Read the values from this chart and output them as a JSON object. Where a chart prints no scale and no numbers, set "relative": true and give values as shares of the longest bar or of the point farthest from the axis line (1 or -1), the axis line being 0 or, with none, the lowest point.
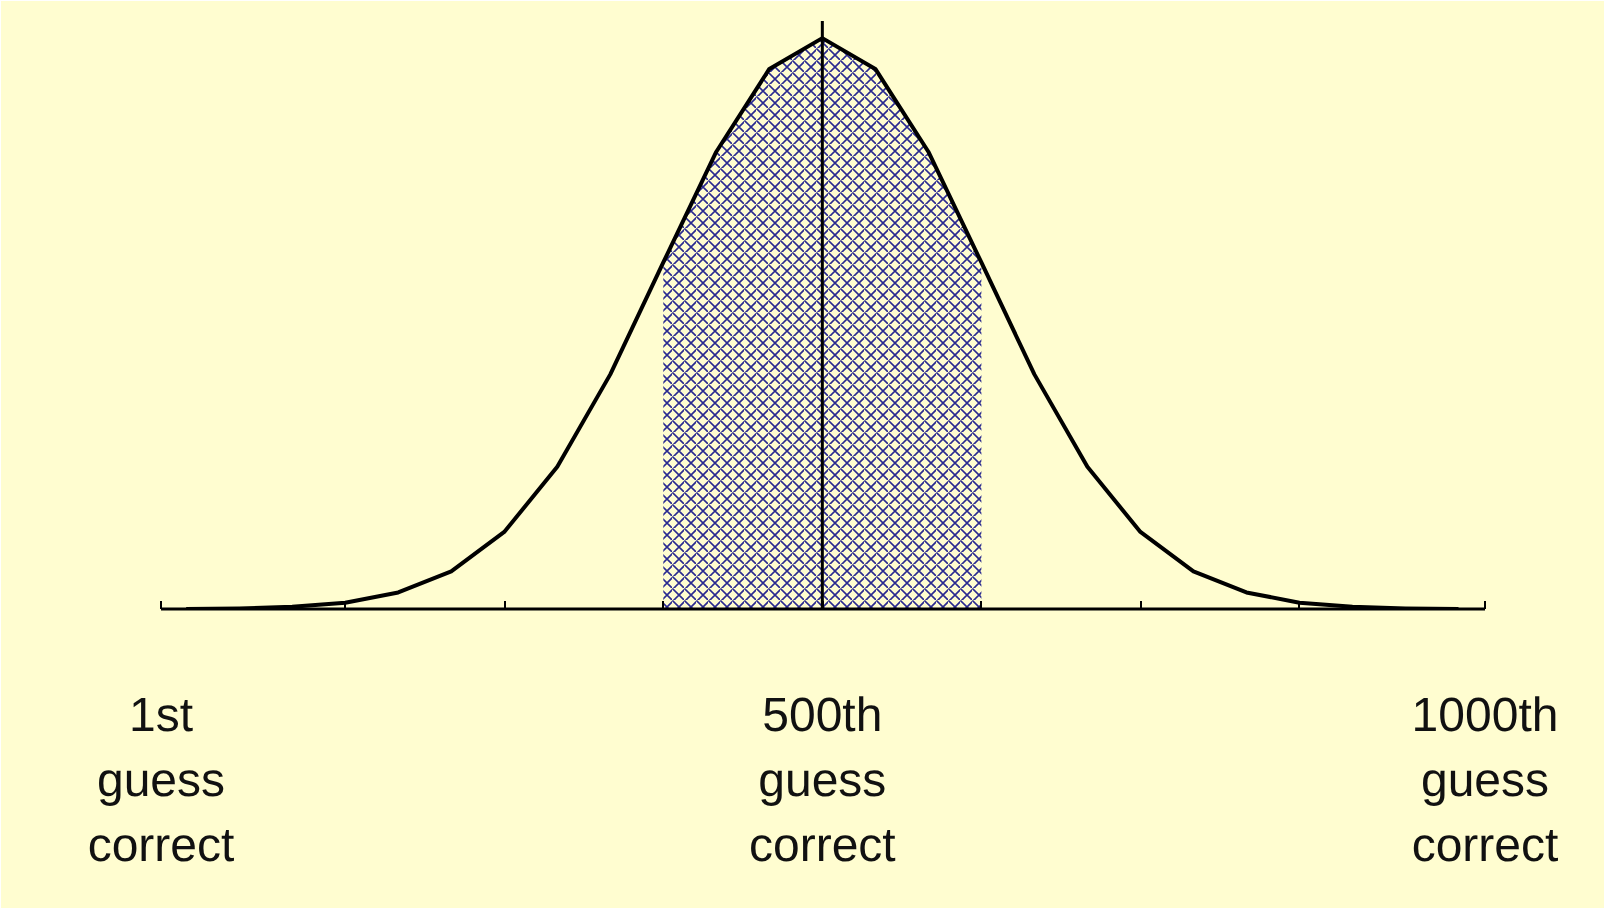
{
  "chart_data": {
    "type": "line",
    "relative": true,
    "x": [
      20,
      60,
      100,
      140,
      180,
      220,
      260,
      300,
      340,
      380,
      420,
      460,
      500,
      540,
      580,
      620,
      660,
      700,
      740,
      780,
      820,
      860,
      900,
      940,
      980
    ],
    "series": [
      {
        "color": "#000000",
        "values": [
          0,
          0.001,
          0.004,
          0.011,
          0.029,
          0.066,
          0.135,
          0.249,
          0.411,
          0.607,
          0.801,
          0.946,
          1,
          0.946,
          0.801,
          0.607,
          0.411,
          0.249,
          0.135,
          0.066,
          0.029,
          0.011,
          0.004,
          0.001,
          0
        ]
      }
    ],
    "xlim": [
      1,
      1000
    ],
    "xticks": [
      {
        "value": 1,
        "label": "1st\nguess\ncorrect"
      },
      {
        "value": 140,
        "label": null
      },
      {
        "value": 260,
        "label": null
      },
      {
        "value": 380,
        "label": null
      },
      {
        "value": 500,
        "label": "500th\nguess\ncorrect"
      },
      {
        "value": 620,
        "label": null
      },
      {
        "value": 740,
        "label": null
      },
      {
        "value": 860,
        "label": null
      },
      {
        "value": 1000,
        "label": "1000th\nguess\ncorrect"
      }
    ],
    "ref_lines": [
      {
        "axis": "x",
        "value": 500,
        "color": "#000000"
      }
    ],
    "bands": [
      {
        "axis": "x",
        "from": 380,
        "to": 620,
        "color": "#2a2a90"
      }
    ]
  }
}
